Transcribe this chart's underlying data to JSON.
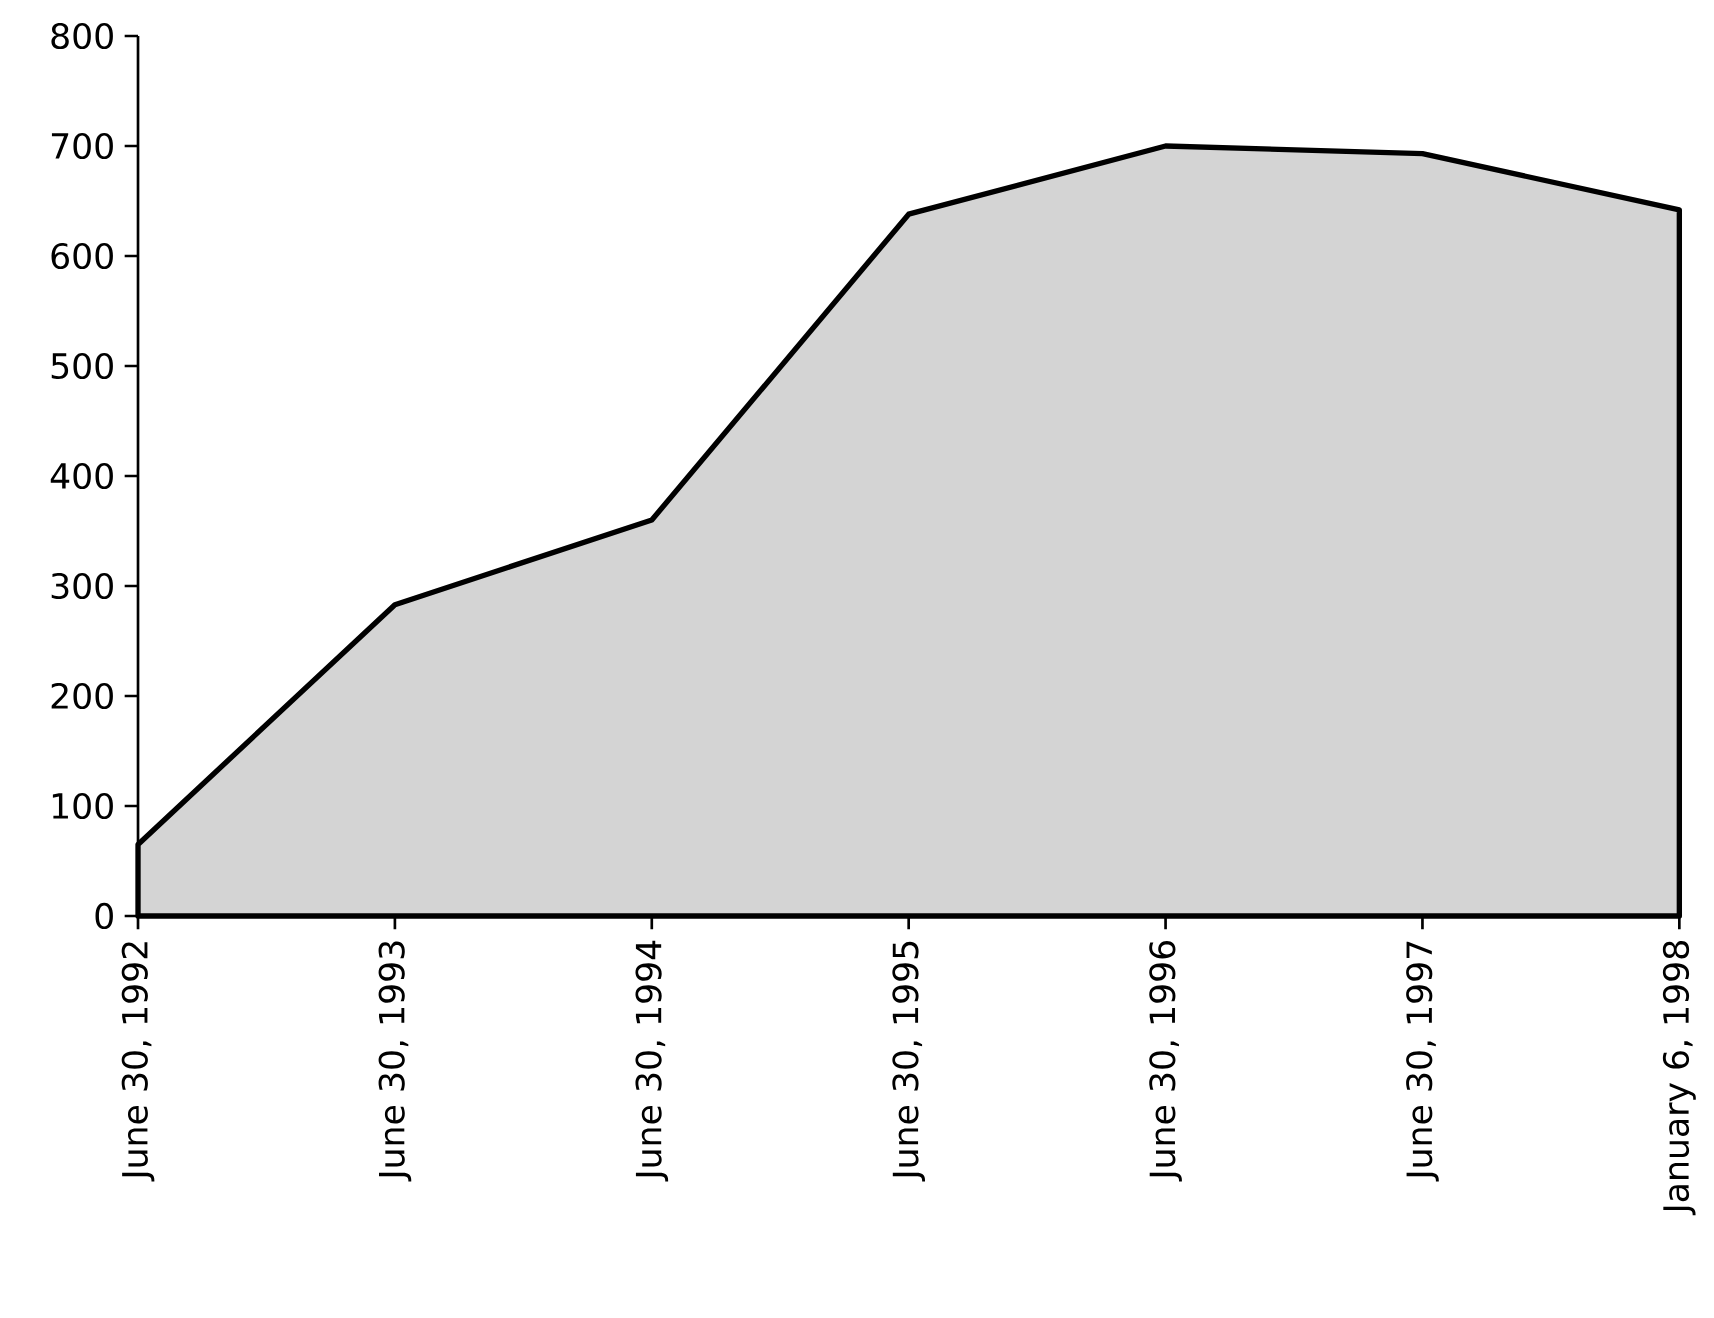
{
  "chart_data": {
    "type": "area",
    "categories": [
      "June 30, 1992",
      "June 30, 1993",
      "June 30, 1994",
      "June 30, 1995",
      "June 30, 1996",
      "June 30, 1997",
      "January 6, 1998"
    ],
    "values": [
      65,
      283,
      360,
      638,
      700,
      693,
      642
    ],
    "color": "#d4d4d4",
    "ylim": [
      0,
      800
    ],
    "yticks": [
      0,
      100,
      200,
      300,
      400,
      500,
      600,
      700,
      800
    ]
  }
}
